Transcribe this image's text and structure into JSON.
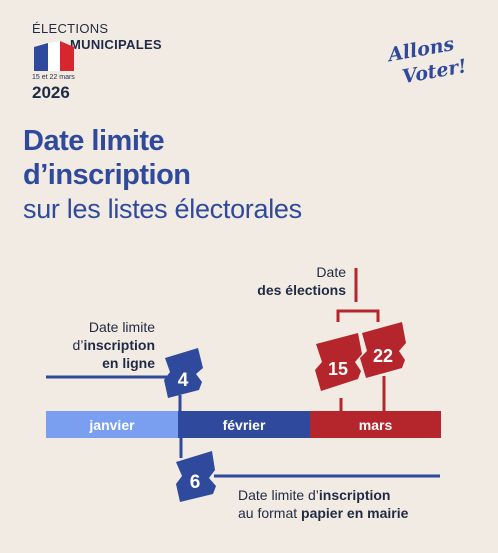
{
  "header": {
    "line1": "ÉLECTIONS",
    "line2": "MUNICIPALES",
    "dates": "15 et 22 mars",
    "year": "2026"
  },
  "logo": {
    "line1": "Allons",
    "line2": "Voter!"
  },
  "title": {
    "line1": "Date limite",
    "line2": "d’inscription",
    "line3": "sur les listes électorales"
  },
  "election_label": {
    "line1": "Date",
    "line2": "des élections"
  },
  "online_label": {
    "line1": "Date limite",
    "line2_a": "d’",
    "line2_b": "inscription",
    "line3": "en ligne"
  },
  "paper_label": {
    "line1_a": "Date limite d’",
    "line1_b": "inscription",
    "line2_a": "au format ",
    "line2_b": "papier en mairie"
  },
  "months": [
    "janvier",
    "février",
    "mars"
  ],
  "badges": {
    "online": "4",
    "paper": "6",
    "first_round": "15",
    "second_round": "22"
  },
  "colors": {
    "navy": "#2f4a9c",
    "dark_navy": "#1f2a44",
    "light_blue": "#7b9ff0",
    "red": "#b5262c",
    "background": "#f2ebe3"
  }
}
